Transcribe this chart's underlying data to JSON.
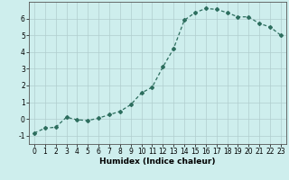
{
  "x": [
    0,
    1,
    2,
    3,
    4,
    5,
    6,
    7,
    8,
    9,
    10,
    11,
    12,
    13,
    14,
    15,
    16,
    17,
    18,
    19,
    20,
    21,
    22,
    23
  ],
  "y": [
    -0.85,
    -0.55,
    -0.5,
    0.1,
    -0.05,
    -0.1,
    0.05,
    0.25,
    0.45,
    0.85,
    1.55,
    1.9,
    3.1,
    4.2,
    5.9,
    6.35,
    6.6,
    6.55,
    6.35,
    6.1,
    6.1,
    5.7,
    5.5,
    5.0
  ],
  "line_color": "#2d6e5e",
  "marker": "D",
  "markersize": 2.0,
  "linewidth": 0.9,
  "xlabel": "Humidex (Indice chaleur)",
  "xlim": [
    -0.5,
    23.5
  ],
  "ylim": [
    -1.5,
    7.0
  ],
  "yticks": [
    -1,
    0,
    1,
    2,
    3,
    4,
    5,
    6
  ],
  "xticks": [
    0,
    1,
    2,
    3,
    4,
    5,
    6,
    7,
    8,
    9,
    10,
    11,
    12,
    13,
    14,
    15,
    16,
    17,
    18,
    19,
    20,
    21,
    22,
    23
  ],
  "bg_color": "#ceeeed",
  "grid_color": "#b0cece",
  "xlabel_fontsize": 6.5,
  "tick_fontsize": 5.5
}
